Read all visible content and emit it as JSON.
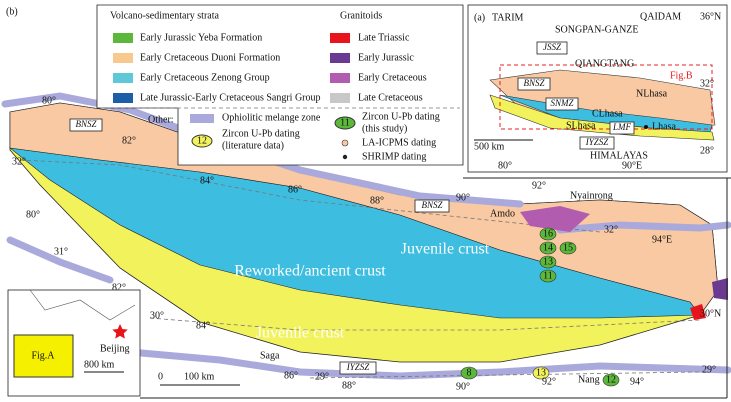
{
  "panel_b": {
    "label": "(b)"
  },
  "legend": {
    "strata_title": "Volcano-sedimentary strata",
    "strata": [
      {
        "label": "Early Jurassic Yeba Formation",
        "color": "#5cb83a"
      },
      {
        "label": "Early Cretaceous Duoni Formation",
        "color": "#f7c98f"
      },
      {
        "label": "Early Cretaceous Zenong Group",
        "color": "#5ec7d8"
      },
      {
        "label": "Late Jurassic-Early Cretaceous Sangri Group",
        "color": "#1c5ea8"
      }
    ],
    "granitoids_title": "Granitoids",
    "granitoids": [
      {
        "label": "Late Triassic",
        "color": "#e8141c"
      },
      {
        "label": "Early Jurassic",
        "color": "#6a3a90"
      },
      {
        "label": "Early Cretaceous",
        "color": "#b25cb0"
      },
      {
        "label": "Late Cretaceous",
        "color": "#c8c8c8"
      }
    ],
    "other_title": "Other:",
    "ophiolite": "Ophiolitic melange zone",
    "zircon_literature": {
      "symbol": "12",
      "label": "Zircon U-Pb dating",
      "sublabel": "(literature data)"
    },
    "zircon_study": {
      "symbol": "11",
      "label": "Zircon U-Pb dating",
      "sublabel": "(this study)"
    },
    "la_icpms": "LA-ICPMS dating",
    "shrimp": "SHRIMP dating"
  },
  "inset_a": {
    "labels": [
      "(a)",
      "TARIM",
      "QAIDAM",
      "36°N",
      "SONGPAN-GANZE",
      "JSSZ",
      "QIANGTANG",
      "BNSZ",
      "SNMZ",
      "NLhasa",
      "CLhasa",
      "SLhasa",
      "LMF",
      "Lhasa",
      "IYZSZ",
      "Fig.B",
      "32°",
      "500 km",
      "HIMALAYAS",
      "80°",
      "90°E",
      "28°"
    ]
  },
  "map": {
    "labels": [
      "80°",
      "BNSZ",
      "82°",
      "84°",
      "86°",
      "88°",
      "BNSZ",
      "90°",
      "Amdo",
      "92°",
      "Nyainrong",
      "32°",
      "94°E",
      "Juvenile crust",
      "Reworked/ancient crust",
      "Juvenile crust",
      "32°",
      "80°",
      "31°",
      "82°",
      "30°",
      "84°",
      "Saga",
      "86°",
      "IYZSZ",
      "29°",
      "88°",
      "90°",
      "92°",
      "Nang",
      "94°",
      "29°",
      "30°N",
      "0",
      "100 km"
    ],
    "samples": [
      "16",
      "15",
      "14",
      "13",
      "11",
      "8",
      "13",
      "12"
    ]
  },
  "inset_fig_a": {
    "label": "Fig.A",
    "city": "Beijing",
    "scale": "800 km"
  }
}
